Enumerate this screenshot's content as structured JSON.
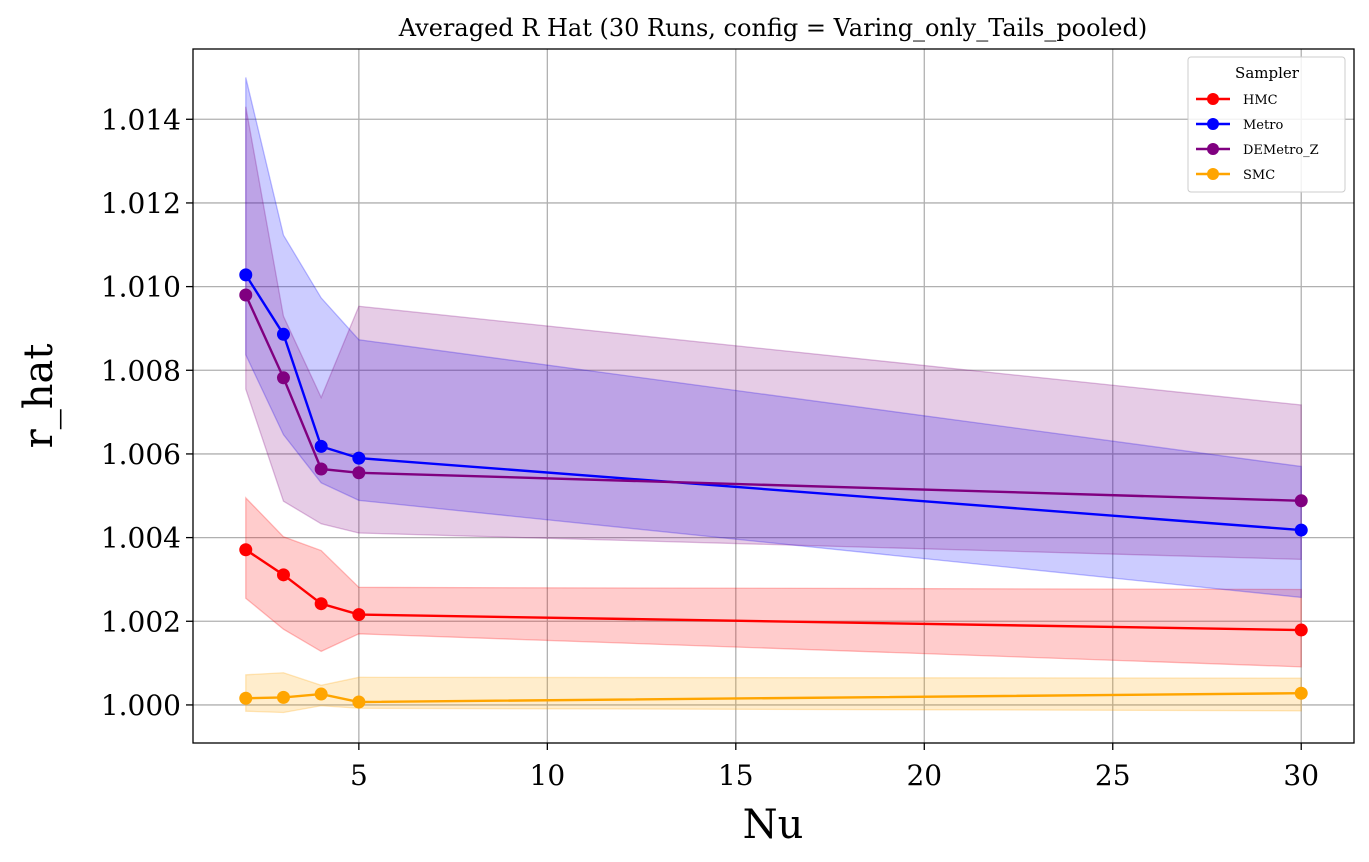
{
  "chart_data": {
    "type": "line",
    "title": "Averaged R Hat (30 Runs, config = Varing_only_Tails_pooled)",
    "xlabel": "Nu",
    "ylabel": "r_hat",
    "xlim": [
      0.6,
      31.4
    ],
    "ylim": [
      0.99909,
      1.01568
    ],
    "x_ticks": [
      5,
      10,
      15,
      20,
      25,
      30
    ],
    "y_ticks": [
      1.0,
      1.002,
      1.004,
      1.006,
      1.008,
      1.01,
      1.012,
      1.014
    ],
    "y_tick_labels": [
      "1.000",
      "1.002",
      "1.004",
      "1.006",
      "1.008",
      "1.010",
      "1.012",
      "1.014"
    ],
    "x_tick_labels": [
      "5",
      "10",
      "15",
      "20",
      "25",
      "30"
    ],
    "grid": true,
    "legend": {
      "title": "Sampler",
      "position": "top-right"
    },
    "x": [
      2,
      3,
      4,
      5,
      30
    ],
    "series": [
      {
        "name": "HMC",
        "color": "#ff0000",
        "values": [
          1.00371,
          1.00311,
          1.00242,
          1.00216,
          1.00179
        ],
        "lower": [
          1.00255,
          1.00181,
          1.00128,
          1.0017,
          1.00091
        ],
        "upper": [
          1.00495,
          1.00402,
          1.00369,
          1.00281,
          1.00276
        ]
      },
      {
        "name": "Metro",
        "color": "#0000ff",
        "values": [
          1.01028,
          1.00886,
          1.00618,
          1.0059,
          1.00418
        ],
        "lower": [
          1.00837,
          1.00646,
          1.00531,
          1.00489,
          1.00257
        ],
        "upper": [
          1.015,
          1.01123,
          1.00973,
          1.00873,
          1.0057
        ]
      },
      {
        "name": "DEMetro_Z",
        "color": "#800080",
        "values": [
          1.0098,
          1.00782,
          1.00564,
          1.00555,
          1.00488
        ],
        "lower": [
          1.00755,
          1.00487,
          1.00433,
          1.00411,
          1.00348
        ],
        "upper": [
          1.0143,
          1.00929,
          1.00735,
          1.00953,
          1.00717
        ]
      },
      {
        "name": "SMC",
        "color": "#ffa500",
        "values": [
          1.00016,
          1.00018,
          1.00026,
          1.00007,
          1.00028
        ],
        "lower": [
          0.99985,
          0.99982,
          0.99998,
          0.99992,
          0.99986
        ],
        "upper": [
          1.00072,
          1.00077,
          1.00047,
          1.00066,
          1.00064
        ]
      }
    ]
  }
}
